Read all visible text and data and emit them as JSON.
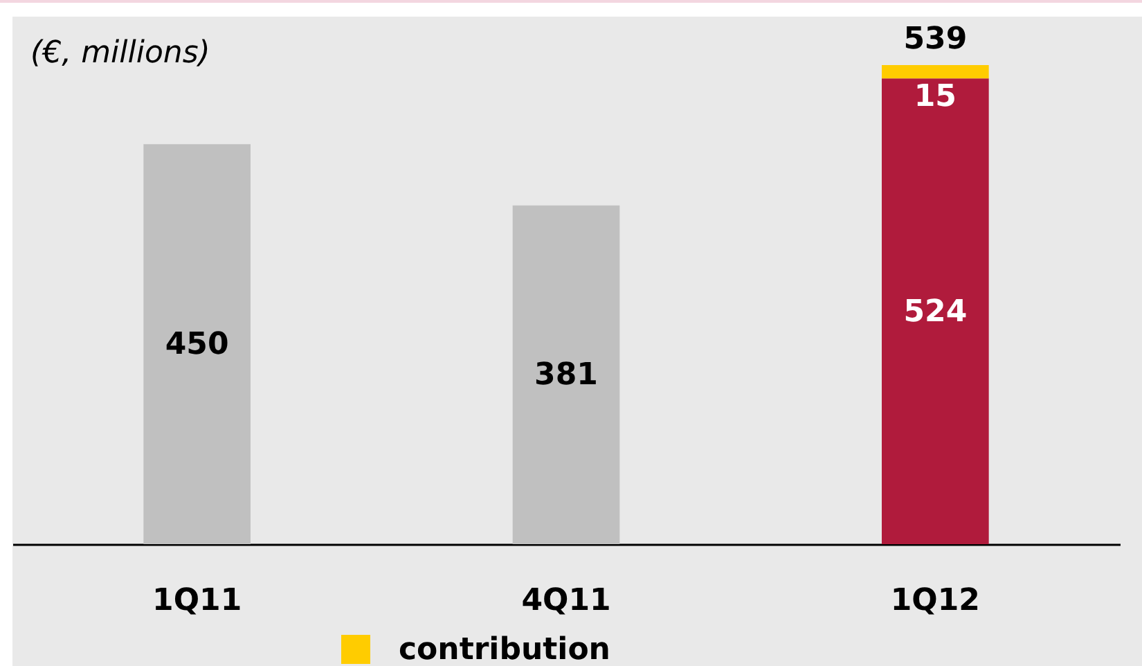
{
  "chart_data": {
    "type": "bar",
    "stacked": true,
    "categories": [
      "1Q11",
      "4Q11",
      "1Q12"
    ],
    "series": [
      {
        "colors": [
          "#c0c0c0",
          "#c0c0c0",
          "#b01b3c"
        ],
        "values": [
          450,
          381,
          524
        ]
      },
      {
        "name": "contribution",
        "color": "#ffcc00",
        "values": [
          null,
          null,
          15
        ]
      }
    ],
    "data_labels": true,
    "totals": [
      null,
      null,
      "539"
    ],
    "annotations": [
      "(€, millions)"
    ],
    "legend": "bottom",
    "tick_labels": "x"
  }
}
